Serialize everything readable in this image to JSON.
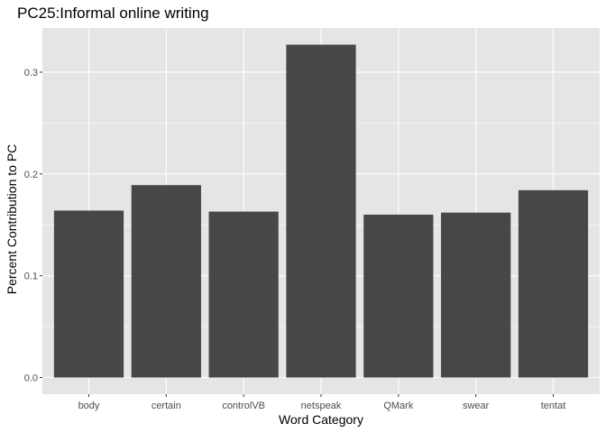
{
  "chart_data": {
    "type": "bar",
    "title": "PC25:Informal online writing",
    "xlabel": "Word Category",
    "ylabel": "Percent Contribution to PC",
    "categories": [
      "body",
      "certain",
      "controlVB",
      "netspeak",
      "QMark",
      "swear",
      "tentat"
    ],
    "values": [
      0.164,
      0.189,
      0.163,
      0.327,
      0.16,
      0.162,
      0.184
    ],
    "ylim": [
      -0.0164,
      0.3434
    ],
    "yticks": [
      0.0,
      0.1,
      0.2,
      0.3
    ],
    "ytick_labels": [
      "0.0",
      "0.1",
      "0.2",
      "0.3"
    ],
    "grid": true,
    "legend": "none",
    "colors": {
      "panel": "#e5e5e5",
      "bar": "#474747",
      "grid": "#ffffff"
    }
  }
}
